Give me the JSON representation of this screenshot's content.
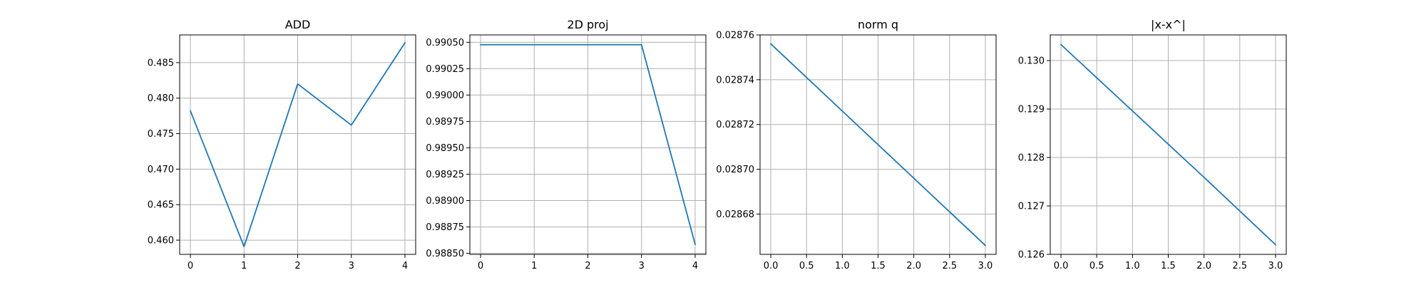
{
  "colors": {
    "series": "#1f77b4",
    "grid": "#b0b0b0",
    "frame": "#000000"
  },
  "chart_data": [
    {
      "type": "line",
      "title": "ADD",
      "grid": true,
      "x": [
        0,
        1,
        2,
        3,
        4
      ],
      "series": [
        {
          "values": [
            0.4782,
            0.4591,
            0.482,
            0.4762,
            0.4878
          ]
        }
      ],
      "xlim": [
        -0.2,
        4.2
      ],
      "ylim": [
        0.458,
        0.4889
      ],
      "xticks": [
        0,
        1,
        2,
        3,
        4
      ],
      "xtick_labels": [
        "0",
        "1",
        "2",
        "3",
        "4"
      ],
      "yticks": [
        0.46,
        0.465,
        0.47,
        0.475,
        0.48,
        0.485
      ],
      "ytick_labels": [
        "0.460",
        "0.465",
        "0.470",
        "0.475",
        "0.480",
        "0.485"
      ]
    },
    {
      "type": "line",
      "title": "2D proj",
      "grid": true,
      "x": [
        0,
        1,
        2,
        3,
        4
      ],
      "series": [
        {
          "values": [
            0.990477,
            0.990477,
            0.990477,
            0.990477,
            0.988585
          ]
        }
      ],
      "xlim": [
        -0.2,
        4.2
      ],
      "ylim": [
        0.98849,
        0.99057
      ],
      "xticks": [
        0,
        1,
        2,
        3,
        4
      ],
      "xtick_labels": [
        "0",
        "1",
        "2",
        "3",
        "4"
      ],
      "yticks": [
        0.9885,
        0.98875,
        0.989,
        0.98925,
        0.9895,
        0.98975,
        0.99,
        0.99025,
        0.9905
      ],
      "ytick_labels": [
        "0.98850",
        "0.98875",
        "0.98900",
        "0.98925",
        "0.98950",
        "0.98975",
        "0.99000",
        "0.99025",
        "0.99050"
      ]
    },
    {
      "type": "line",
      "title": "norm q",
      "grid": true,
      "x": [
        0,
        1,
        2,
        3
      ],
      "series": [
        {
          "values": [
            0.028756,
            0.028726,
            0.028696,
            0.028666
          ]
        }
      ],
      "xlim": [
        -0.15,
        3.15
      ],
      "ylim": [
        0.028662,
        0.02876
      ],
      "xticks": [
        0.0,
        0.5,
        1.0,
        1.5,
        2.0,
        2.5,
        3.0
      ],
      "xtick_labels": [
        "0.0",
        "0.5",
        "1.0",
        "1.5",
        "2.0",
        "2.5",
        "3.0"
      ],
      "yticks": [
        0.02868,
        0.0287,
        0.02872,
        0.02874,
        0.02876
      ],
      "ytick_labels": [
        "0.02868",
        "0.02870",
        "0.02872",
        "0.02874",
        "0.02876"
      ]
    },
    {
      "type": "line",
      "title": "|x-x^|",
      "grid": true,
      "x": [
        0,
        1,
        2,
        3
      ],
      "series": [
        {
          "values": [
            0.13033,
            0.12896,
            0.12759,
            0.1262
          ]
        }
      ],
      "xlim": [
        -0.15,
        3.15
      ],
      "ylim": [
        0.126,
        0.13053
      ],
      "xticks": [
        0.0,
        0.5,
        1.0,
        1.5,
        2.0,
        2.5,
        3.0
      ],
      "xtick_labels": [
        "0.0",
        "0.5",
        "1.0",
        "1.5",
        "2.0",
        "2.5",
        "3.0"
      ],
      "yticks": [
        0.126,
        0.127,
        0.128,
        0.129,
        0.13
      ],
      "ytick_labels": [
        "0.126",
        "0.127",
        "0.128",
        "0.129",
        "0.130"
      ]
    }
  ]
}
